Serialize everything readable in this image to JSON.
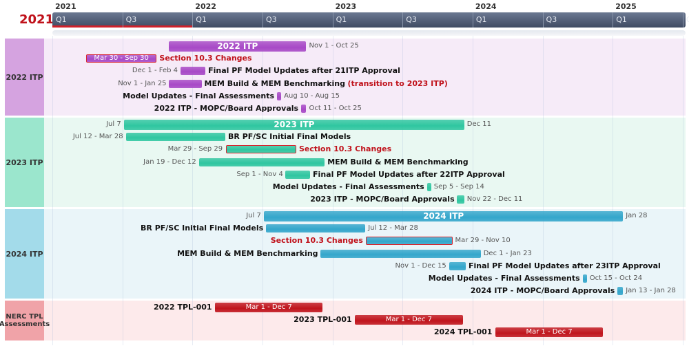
{
  "current_year": "2021",
  "axis": {
    "start": "2021-01-01",
    "end": "2025-07-15",
    "years": [
      "2021",
      "2022",
      "2023",
      "2024",
      "2025"
    ],
    "quarters": [
      "Q1",
      "Q3"
    ],
    "today": "2022-01-01"
  },
  "groups": [
    {
      "label": "2022 ITP",
      "color": "#a748c6",
      "bg": "#f6ebf8",
      "label_bg": "#d5a3e0",
      "rows": [
        {
          "name": "2022 ITP",
          "summary": true,
          "start": "2021-11-01",
          "end": "2022-10-25",
          "name_pos": "inside",
          "date_right": "Nov 1 - Oct 25"
        },
        {
          "name": "Section 10.3 Changes",
          "highlight": true,
          "start": "2021-03-30",
          "end": "2021-09-30",
          "name_pos": "right",
          "date_inside": "Mar 30 - Sep 30"
        },
        {
          "name": "Final PF Model Updates after 21ITP Approval",
          "start": "2021-12-01",
          "end": "2022-02-04",
          "name_pos": "right",
          "date_left": "Dec 1 - Feb 4"
        },
        {
          "name": "MEM Build & MEM Benchmarking",
          "suffix": "(transition to 2023 ITP)",
          "start": "2021-11-01",
          "end": "2022-01-25",
          "name_pos": "right",
          "date_left": "Nov 1 - Jan 25"
        },
        {
          "name": "Model Updates - Final Assessments",
          "start": "2022-08-10",
          "end": "2022-08-15",
          "name_pos": "left",
          "date_right": "Aug 10 - Aug 15"
        },
        {
          "name": "2022 ITP - MOPC/Board Approvals",
          "start": "2022-10-11",
          "end": "2022-10-25",
          "name_pos": "left",
          "date_right": "Oct 11 - Oct 25"
        }
      ]
    },
    {
      "label": "2023 ITP",
      "color": "#2fc6a0",
      "bg": "#e9f8f2",
      "label_bg": "#9be6cd",
      "rows": [
        {
          "name": "2023 ITP",
          "summary": true,
          "start": "2021-07-07",
          "end": "2023-12-11",
          "name_pos": "inside",
          "date_left": "Jul 7",
          "date_right": "Dec 11"
        },
        {
          "name": "BR PF/SC Initial Final Models",
          "start": "2021-07-12",
          "end": "2022-03-28",
          "name_pos": "right",
          "date_left": "Jul 12 - Mar 28"
        },
        {
          "name": "Section 10.3 Changes",
          "highlight": true,
          "start": "2022-03-29",
          "end": "2022-09-29",
          "name_pos": "right",
          "date_left": "Mar 29 - Sep 29"
        },
        {
          "name": "MEM Build & MEM Benchmarking",
          "start": "2022-01-19",
          "end": "2022-12-12",
          "name_pos": "right",
          "date_left": "Jan 19 - Dec 12"
        },
        {
          "name": "Final PF Model Updates after 22ITP Approval",
          "start": "2022-09-01",
          "end": "2022-11-04",
          "name_pos": "right",
          "date_left": "Sep 1 - Nov 4"
        },
        {
          "name": "Model Updates - Final Assessments",
          "start": "2023-09-05",
          "end": "2023-09-14",
          "name_pos": "left",
          "date_right": "Sep 5 - Sep 14"
        },
        {
          "name": "2023 ITP - MOPC/Board Approvals",
          "start": "2023-11-22",
          "end": "2023-12-11",
          "name_pos": "left",
          "date_right": "Nov 22 - Dec 11"
        }
      ]
    },
    {
      "label": "2024 ITP",
      "color": "#33a6cb",
      "bg": "#eaf5f9",
      "label_bg": "#a3dbea",
      "rows": [
        {
          "name": "2024 ITP",
          "summary": true,
          "start": "2022-07-07",
          "end": "2025-01-28",
          "name_pos": "inside",
          "date_left": "Jul 7",
          "date_right": "Jan 28"
        },
        {
          "name": "BR PF/SC Initial Final Models",
          "start": "2022-07-12",
          "end": "2023-03-28",
          "name_pos": "left",
          "date_right": "Jul 12 - Mar 28"
        },
        {
          "name": "Section 10.3 Changes",
          "highlight": true,
          "start": "2023-03-29",
          "end": "2023-11-10",
          "name_pos": "left",
          "date_right": "Mar 29 - Nov 10"
        },
        {
          "name": "MEM Build & MEM Benchmarking",
          "start": "2022-12-01",
          "end": "2024-01-23",
          "name_pos": "left",
          "date_right": "Dec 1 - Jan 23"
        },
        {
          "name": "Final PF Model Updates after 23ITP Approval",
          "start": "2023-11-01",
          "end": "2023-12-15",
          "name_pos": "right",
          "date_left": "Nov 1 - Dec 15"
        },
        {
          "name": "Model Updates - Final Assessments",
          "start": "2024-10-15",
          "end": "2024-10-24",
          "name_pos": "left",
          "date_right": "Oct 15 - Oct 24"
        },
        {
          "name": "2024 ITP - MOPC/Board Approvals",
          "start": "2025-01-13",
          "end": "2025-01-28",
          "name_pos": "left",
          "date_right": "Jan 13 - Jan 28"
        }
      ]
    },
    {
      "label": "NERC TPL Assessments",
      "color": "#c0141c",
      "bg": "#fdeaeb",
      "label_bg": "#f0a3a8",
      "rows": [
        {
          "name": "2022 TPL-001",
          "start": "2022-03-01",
          "end": "2022-12-07",
          "name_pos": "left",
          "date_inside": "Mar 1 - Dec 7"
        },
        {
          "name": "2023 TPL-001",
          "start": "2023-03-01",
          "end": "2023-12-07",
          "name_pos": "left",
          "date_inside": "Mar 1 - Dec 7"
        },
        {
          "name": "2024 TPL-001",
          "start": "2024-03-01",
          "end": "2024-12-07",
          "name_pos": "left",
          "date_inside": "Mar 1 - Dec 7"
        }
      ]
    }
  ]
}
